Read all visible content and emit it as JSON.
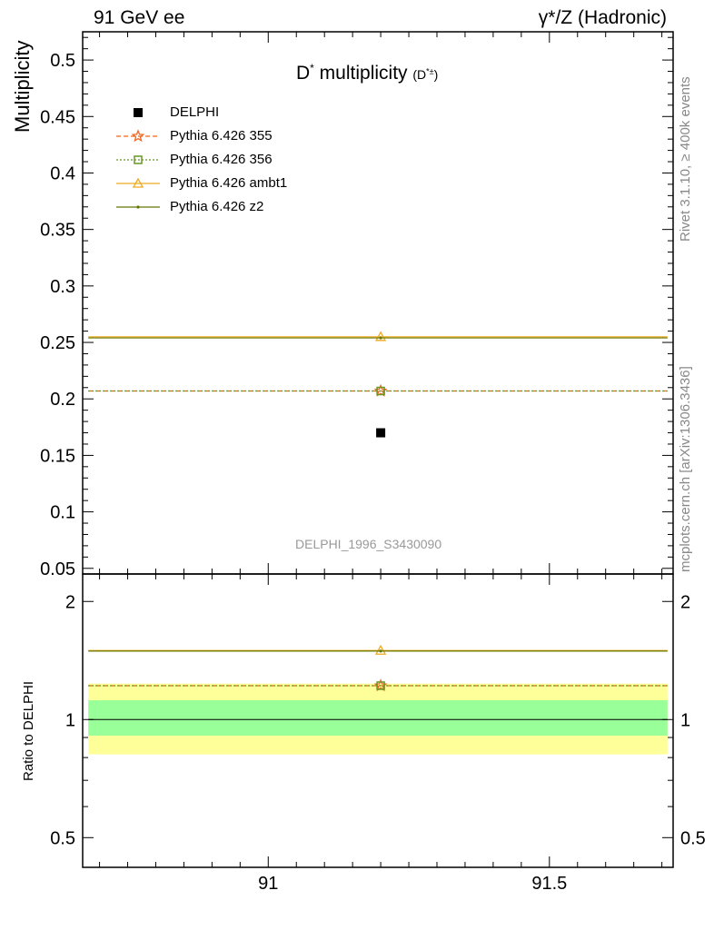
{
  "header": {
    "left": "91 GeV ee",
    "right": "γ*/Z (Hadronic)"
  },
  "side_text": {
    "top": "Rivet 3.1.10, ≥ 400k events",
    "bottom": "mcplots.cern.ch [arXiv:1306.3436]"
  },
  "plot_title": {
    "main": "D",
    "main_sup": "*",
    "text": " multiplicity ",
    "paren_open": "(D",
    "paren_sup": "*±",
    "paren_close": ")"
  },
  "analysis_label": "DELPHI_1996_S3430090",
  "chart_data": [
    {
      "type": "line",
      "ylabel": "Multiplicity",
      "xlim": [
        90.67,
        91.72
      ],
      "ylim": [
        0.045,
        0.525
      ],
      "y_ticks": [
        "0.05",
        "0.1",
        "0.15",
        "0.2",
        "0.25",
        "0.3",
        "0.35",
        "0.4",
        "0.45",
        "0.5"
      ],
      "series": [
        {
          "name": "DELPHI",
          "color": "#000000",
          "marker": "square",
          "x": [
            91.2
          ],
          "y": [
            0.17
          ]
        },
        {
          "name": "Pythia 6.426 355",
          "color": "#ee6622",
          "marker": "star",
          "dash": "dashed",
          "x": [
            90.68,
            91.2,
            91.71
          ],
          "y": [
            0.207,
            0.207,
            0.207
          ]
        },
        {
          "name": "Pythia 6.426 356",
          "color": "#669922",
          "marker": "open-square",
          "dash": "dotted",
          "x": [
            90.68,
            91.2,
            91.71
          ],
          "y": [
            0.207,
            0.207,
            0.207
          ]
        },
        {
          "name": "Pythia 6.426 ambt1",
          "color": "#eeaa22",
          "marker": "open-triangle",
          "dash": "solid",
          "x": [
            90.68,
            91.2,
            91.71
          ],
          "y": [
            0.255,
            0.255,
            0.255
          ]
        },
        {
          "name": "Pythia 6.426 z2",
          "color": "#667700",
          "marker": "dot",
          "dash": "solid",
          "x": [
            90.68,
            91.2,
            91.71
          ],
          "y": [
            0.254,
            0.254,
            0.254
          ]
        }
      ]
    },
    {
      "type": "line",
      "ylabel": "Ratio to DELPHI",
      "xlim": [
        90.67,
        91.72
      ],
      "ylim": [
        0.42,
        2.35
      ],
      "log_y": true,
      "x_ticks": [
        "91",
        "91.5"
      ],
      "y_ticks": [
        "0.5",
        "1",
        "2"
      ],
      "bands": [
        {
          "color": "#ffff99",
          "lo": 0.815,
          "hi": 1.235
        },
        {
          "color": "#99ff99",
          "lo": 0.91,
          "hi": 1.12
        }
      ],
      "series": [
        {
          "name": "Pythia 6.426 355",
          "color": "#ee6622",
          "marker": "star",
          "dash": "dashed",
          "y": 1.22
        },
        {
          "name": "Pythia 6.426 356",
          "color": "#669922",
          "marker": "open-square",
          "dash": "dotted",
          "y": 1.22
        },
        {
          "name": "Pythia 6.426 ambt1",
          "color": "#eeaa22",
          "marker": "open-triangle",
          "dash": "solid",
          "y": 1.5
        },
        {
          "name": "Pythia 6.426 z2",
          "color": "#667700",
          "marker": "dot",
          "dash": "solid",
          "y": 1.495
        }
      ]
    }
  ]
}
